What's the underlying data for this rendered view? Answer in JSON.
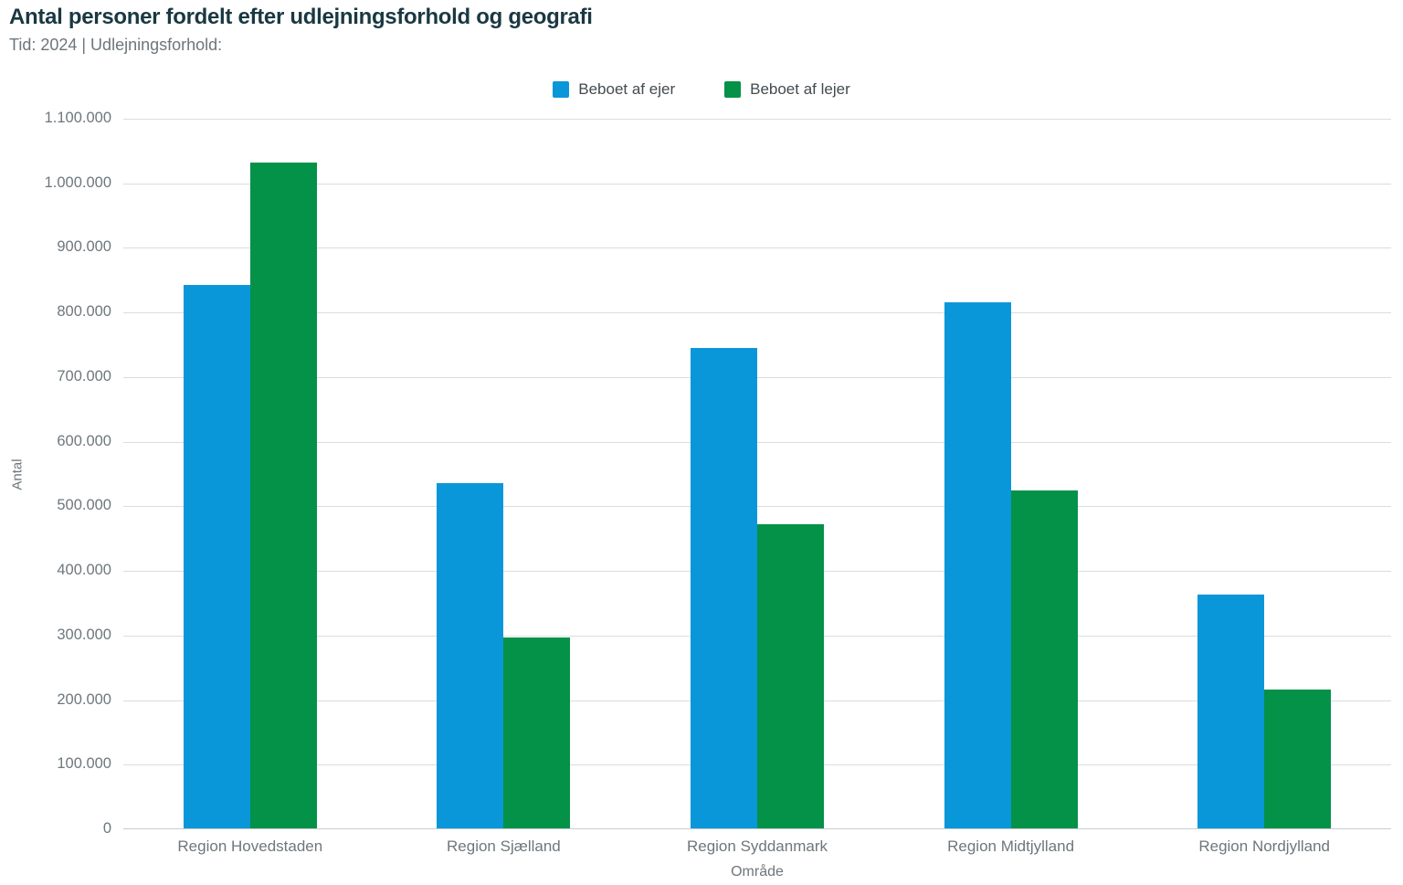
{
  "header": {
    "title": "Antal personer fordelt efter udlejningsforhold og geografi",
    "subtitle": "Tid: 2024 | Udlejningsforhold:"
  },
  "colors": {
    "owner_blue": "#0a97d9",
    "renter_green": "#049148",
    "title_text": "#1a3842",
    "muted_text": "#6e777c",
    "legend_text": "#424b50",
    "gridline": "#d8dde1"
  },
  "chart_data": {
    "type": "bar",
    "title": "Antal personer fordelt efter udlejningsforhold og geografi",
    "subtitle": "Tid: 2024 | Udlejningsforhold:",
    "categories": [
      "Region Hovedstaden",
      "Region Sjælland",
      "Region Syddanmark",
      "Region Midtjylland",
      "Region Nordjylland"
    ],
    "series": [
      {
        "name": "Beboet af ejer",
        "color": "#0a97d9",
        "values": [
          843000,
          536000,
          745000,
          816000,
          364000
        ]
      },
      {
        "name": "Beboet af lejer",
        "color": "#049148",
        "values": [
          1032000,
          297000,
          472000,
          525000,
          216000
        ]
      }
    ],
    "xlabel": "Område",
    "ylabel": "Antal",
    "ylim": [
      0,
      1100000
    ],
    "ytick_step": 100000,
    "yticks": [
      "1.100.000",
      "1.000.000",
      "900.000",
      "800.000",
      "700.000",
      "600.000",
      "500.000",
      "400.000",
      "300.000",
      "200.000",
      "100.000",
      "0"
    ],
    "grid": true,
    "legend_position": "top-center"
  }
}
